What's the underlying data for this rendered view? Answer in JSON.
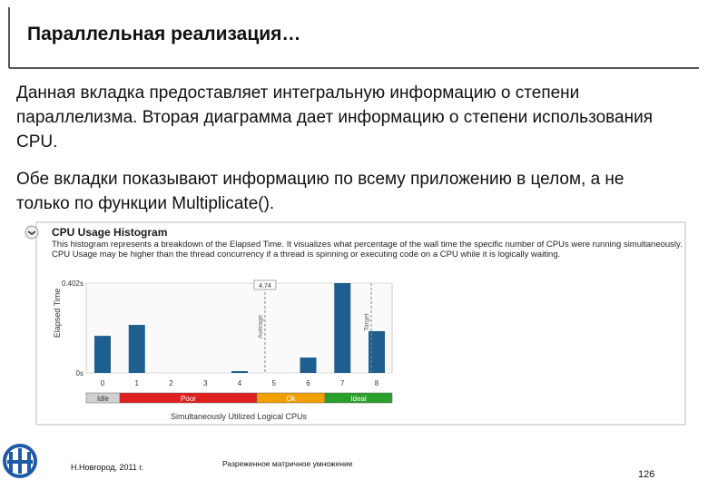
{
  "header": {
    "title": "Параллельная реализация…"
  },
  "paragraphs": [
    "Данная вкладка предоставляет интегральную информацию о степени параллелизма. Вторая диаграмма дает информацию о степени использования CPU.",
    "Обе вкладки показывают информацию по всему приложению в целом, а не только по функции Multiplicate()."
  ],
  "chart_data": {
    "type": "bar",
    "title": "CPU Usage Histogram",
    "description": "This histogram represents a breakdown of the Elapsed Time. It visualizes what percentage of the wall time the specific number of CPUs were running simultaneously. CPU Usage may be higher than the thread concurrency if a thread is spinning or executing code on a CPU while it is logically waiting.",
    "y_label": "Elapsed Time",
    "x_label": "Simultaneously Utilized Logical CPUs",
    "categories": [
      "0",
      "1",
      "2",
      "3",
      "4",
      "5",
      "6",
      "7",
      "8"
    ],
    "values": [
      0.166,
      0.215,
      0,
      0,
      0.008,
      0,
      0.069,
      0.402,
      0.187
    ],
    "color": "#1f5f8f",
    "ylim": [
      0,
      0.402
    ],
    "yticks": [
      {
        "value": 0,
        "label": "0s"
      },
      {
        "value": 0.402,
        "label": "0.402s"
      }
    ],
    "average": 4.74,
    "average_label": "Average",
    "target_label": "Target",
    "utilization": [
      "Idle",
      "Poor",
      "Ok",
      "Ideal"
    ]
  },
  "footer": {
    "left": "Н.Новгород, 2011 г.",
    "center": "Разреженное матричное умножение",
    "page": "126"
  }
}
